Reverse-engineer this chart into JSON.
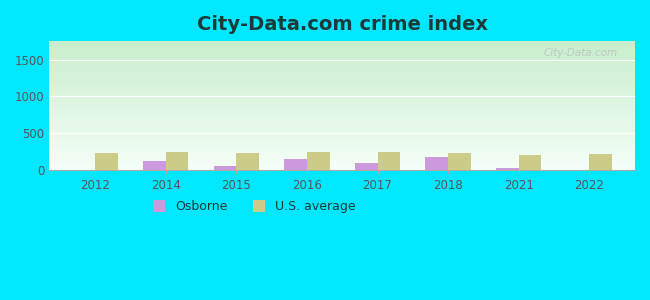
{
  "title": "City-Data.com crime index",
  "years": [
    2012,
    2014,
    2015,
    2016,
    2017,
    2018,
    2021,
    2022
  ],
  "osborne": [
    0,
    130,
    60,
    150,
    100,
    185,
    30,
    0
  ],
  "us_avg": [
    230,
    250,
    240,
    245,
    245,
    230,
    210,
    220
  ],
  "osborne_color": "#cc99dd",
  "us_avg_color": "#cccc88",
  "ylim": [
    0,
    1750
  ],
  "yticks": [
    0,
    500,
    1000,
    1500
  ],
  "bg_top_left": "#b8e8c8",
  "bg_top_right": "#e8f8f0",
  "bg_bottom": "#f8fff8",
  "outer_bg": "#00e8ff",
  "bar_width": 0.32,
  "title_fontsize": 14,
  "title_color": "#1a3a3a",
  "watermark": "City-Data.com",
  "legend_labels": [
    "Osborne",
    "U.S. average"
  ],
  "tick_color": "#555555"
}
